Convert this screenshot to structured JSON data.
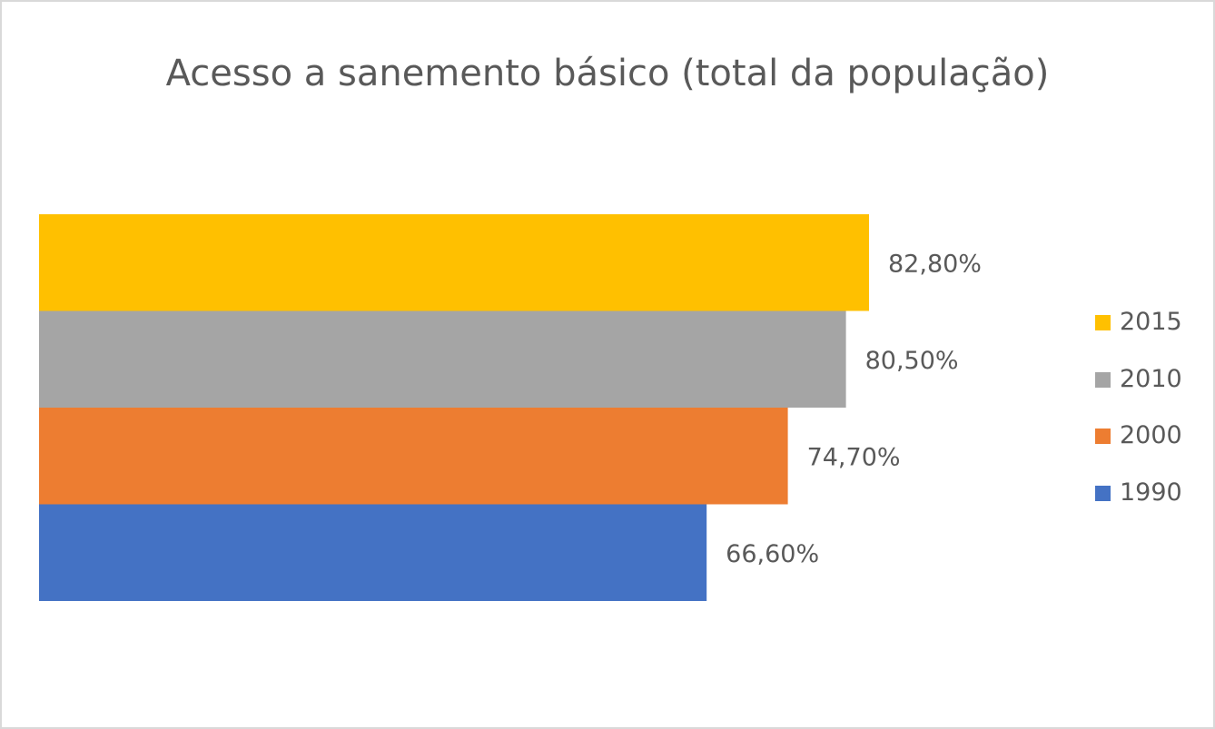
{
  "chart_data": {
    "type": "bar",
    "orientation": "horizontal",
    "title": "Acesso a sanemento básico (total da população)",
    "xlabel": "",
    "ylabel": "",
    "xlim": [
      0,
      90
    ],
    "grid": false,
    "legend_position": "right",
    "series": [
      {
        "name": "2015",
        "value": 82.8,
        "label": "82,80%",
        "color": "#FFC000"
      },
      {
        "name": "2010",
        "value": 80.5,
        "label": "80,50%",
        "color": "#A5A5A5"
      },
      {
        "name": "2000",
        "value": 74.7,
        "label": "74,70%",
        "color": "#ED7D31"
      },
      {
        "name": "1990",
        "value": 66.6,
        "label": "66,60%",
        "color": "#4472C4"
      }
    ]
  }
}
